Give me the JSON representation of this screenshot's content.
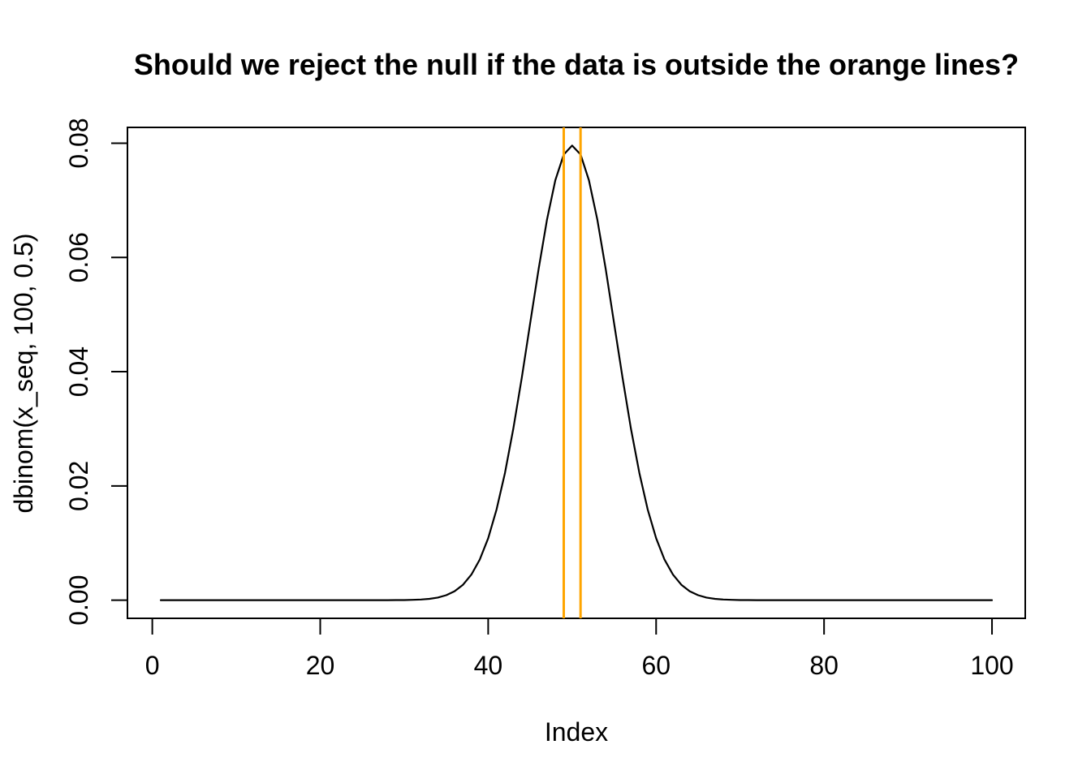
{
  "chart_data": {
    "type": "line",
    "title": "Should we reject the null if the data is outside the orange lines?",
    "xlabel": "Index",
    "ylabel": "dbinom(x_seq, 100, 0.5)",
    "background_color": "#FFFFFF",
    "line_color": "#000000",
    "axis_color": "#000000",
    "grid": false,
    "legend": null,
    "xlim": [
      -2.96,
      103.96
    ],
    "ylim": [
      -0.00318,
      0.08277
    ],
    "x_ticks": [
      0,
      20,
      40,
      60,
      80,
      100
    ],
    "x_tick_labels": [
      "0",
      "20",
      "40",
      "60",
      "80",
      "100"
    ],
    "y_ticks": [
      0,
      0.02,
      0.04,
      0.06,
      0.08
    ],
    "y_tick_labels": [
      "0.00",
      "0.02",
      "0.04",
      "0.06",
      "0.08"
    ],
    "vertical_lines": {
      "x_values": [
        49,
        51
      ],
      "color": "#FFA500",
      "meaning": "orange rejection boundary lines"
    },
    "series": [
      {
        "name": "dbinom(x_seq, 100, 0.5)",
        "x_start": 1,
        "x_step": 1,
        "peak": {
          "x": 50,
          "y": 0.0795892
        },
        "y": [
          0,
          0,
          0,
          0,
          0,
          0,
          0,
          0,
          0,
          0,
          0,
          0,
          0,
          0,
          0,
          0,
          0,
          0,
          0,
          0,
          0,
          0,
          0,
          0,
          2e-07,
          5e-07,
          1.5e-06,
          3.9e-06,
          9.8e-06,
          2.32e-05,
          5.23e-05,
          0.0001128,
          0.0002325,
          0.0004581,
          0.0008638,
          0.0015597,
          0.0026978,
          0.0044727,
          0.0071104,
          0.0108434,
          0.0158684,
          0.0222913,
          0.0300674,
          0.0389509,
          0.0484722,
          0.0579559,
          0.0665876,
          0.073527,
          0.0780286,
          0.0795892,
          0.0780286,
          0.073527,
          0.0665876,
          0.0579559,
          0.0484722,
          0.0389509,
          0.0300674,
          0.0222913,
          0.0158684,
          0.0108434,
          0.0071104,
          0.0044727,
          0.0026978,
          0.0015597,
          0.0008638,
          0.0004581,
          0.0002325,
          0.0001128,
          5.23e-05,
          2.32e-05,
          9.8e-06,
          3.9e-06,
          1.5e-06,
          5e-07,
          2e-07,
          0,
          0,
          0,
          0,
          0,
          0,
          0,
          0,
          0,
          0,
          0,
          0,
          0,
          0,
          0,
          0,
          0,
          0,
          0,
          0,
          0,
          0,
          0,
          0,
          0
        ]
      }
    ]
  }
}
